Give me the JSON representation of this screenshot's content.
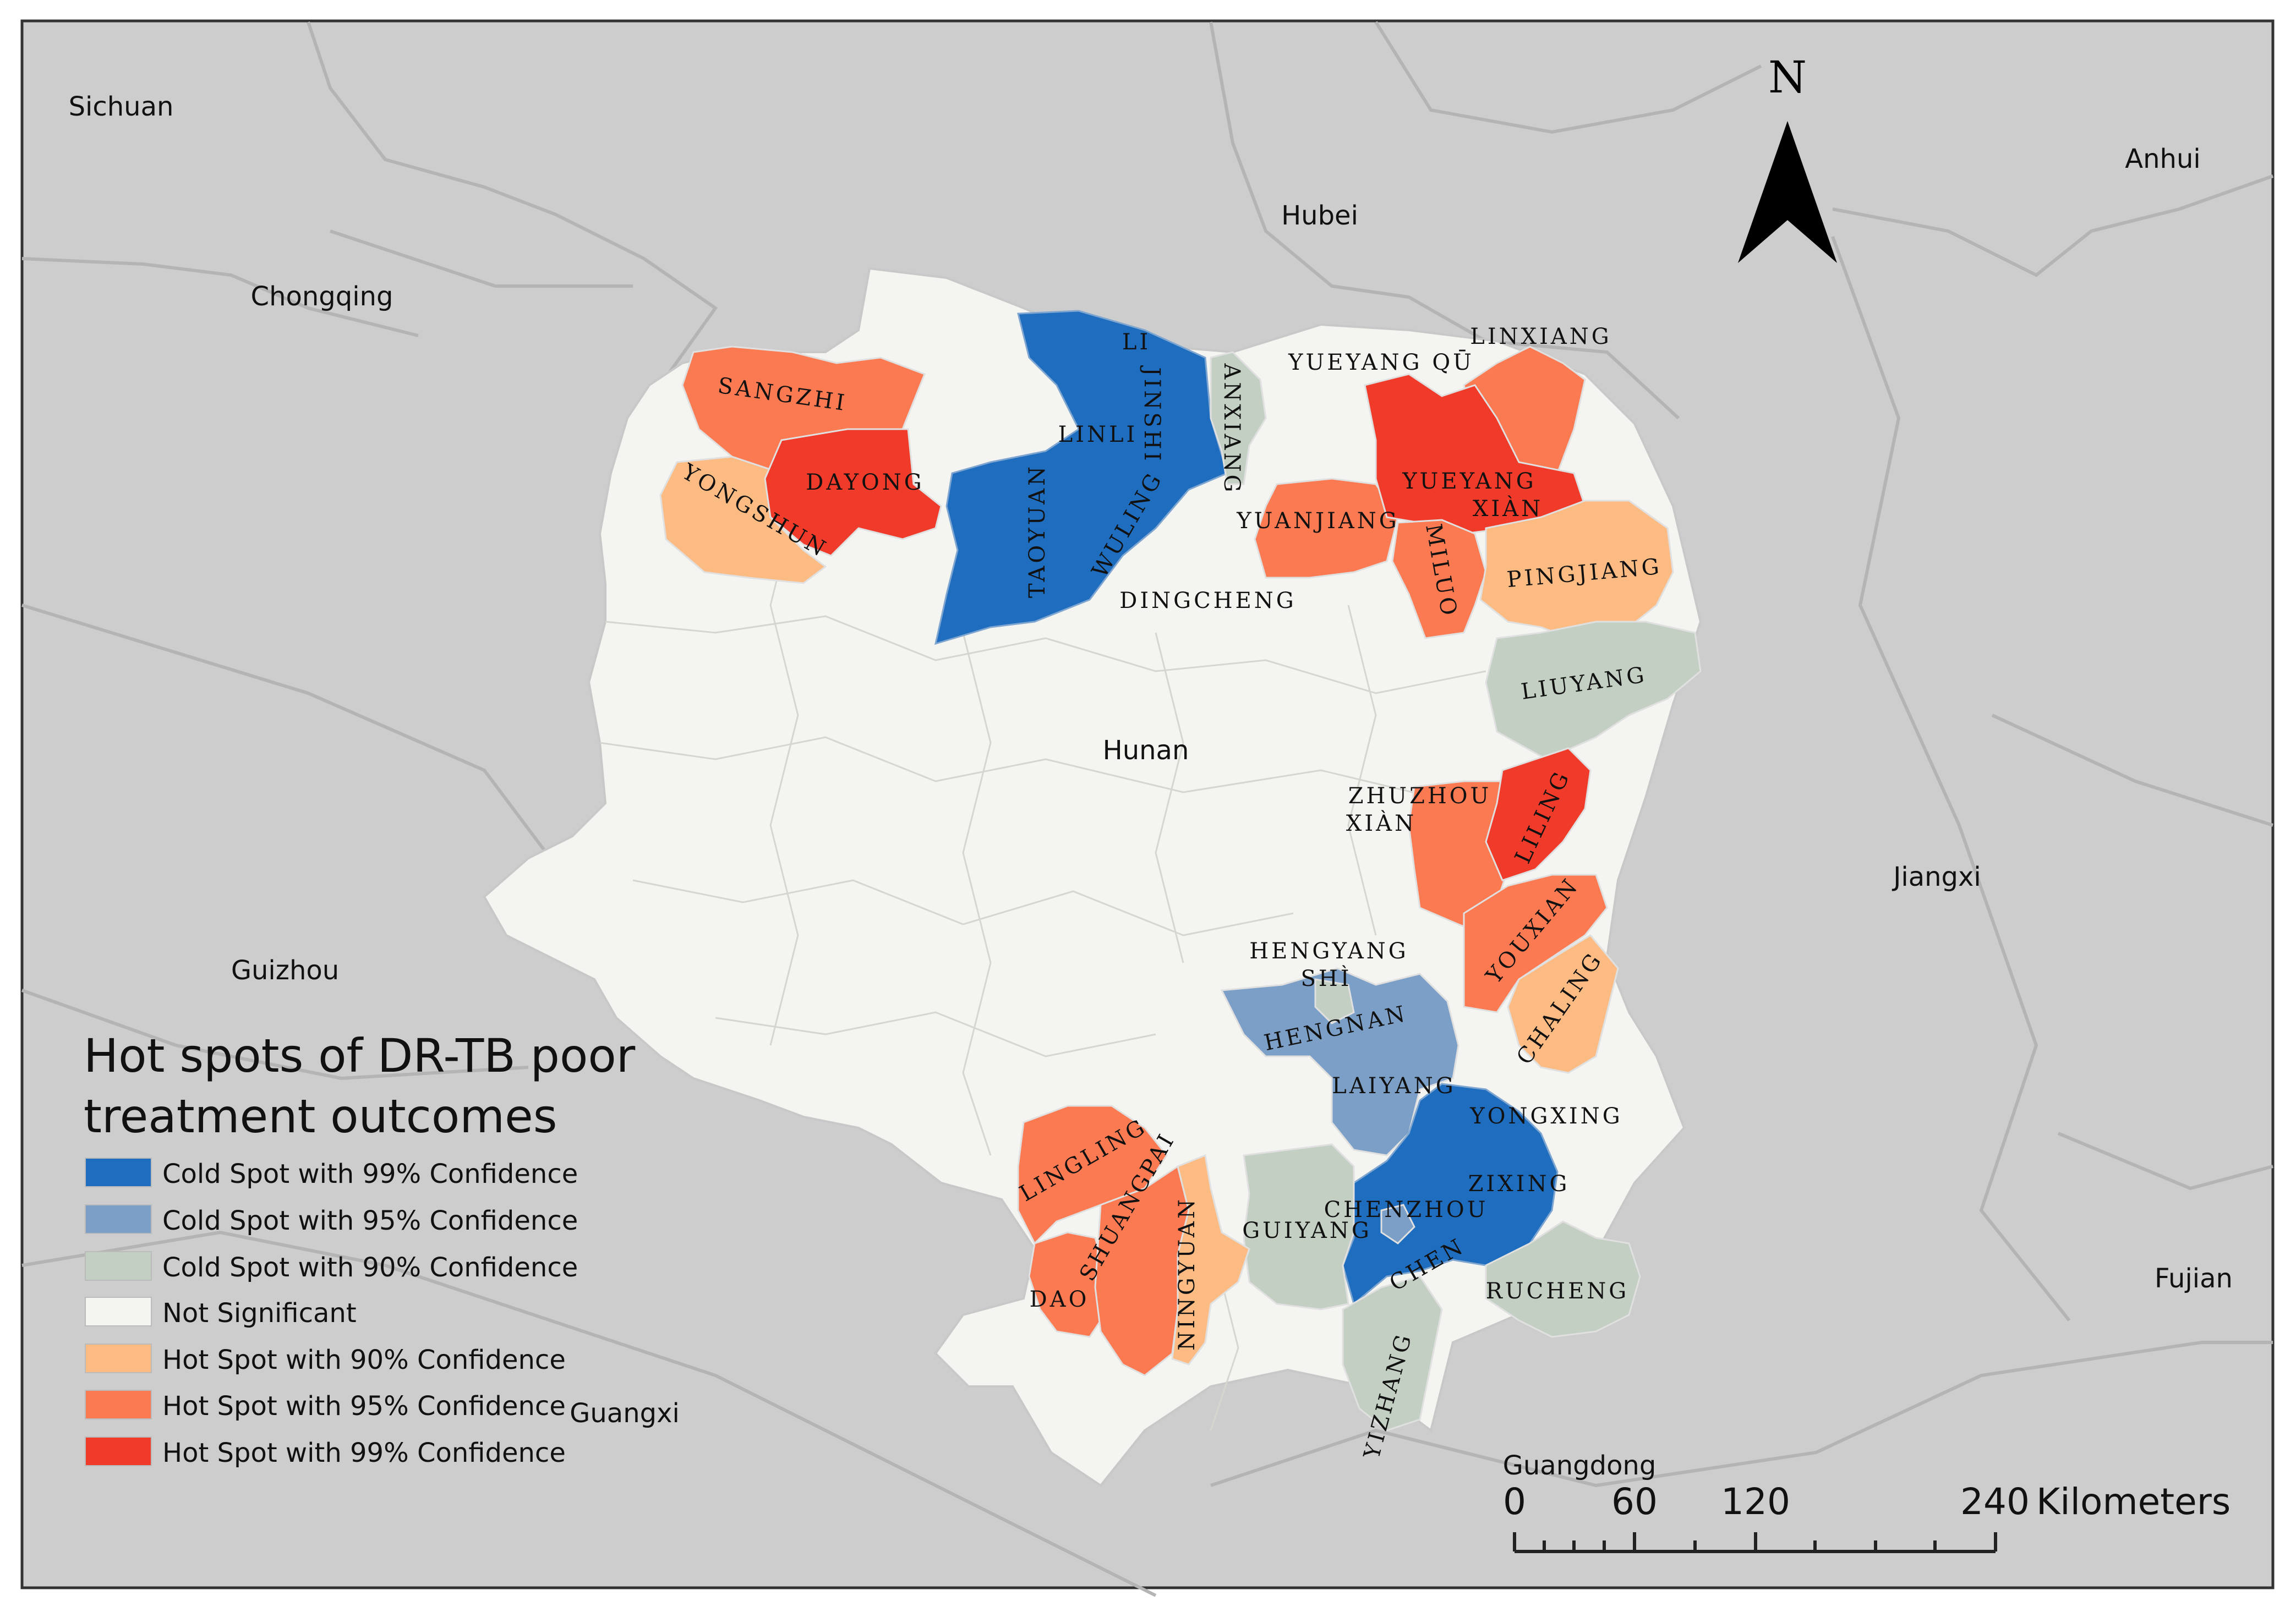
{
  "colors": {
    "background": "#cdcdcd",
    "cold99": "#1f6dbf",
    "cold95": "#7b9fc6",
    "cold90": "#c3cfc3",
    "not_significant": "#f4f4f1",
    "hot90": "#fdbb84",
    "hot95": "#fb7a52",
    "hot99": "#f03a2a"
  },
  "provinces": {
    "sichuan": "Sichuan",
    "chongqing": "Chongqing",
    "hubei": "Hubei",
    "anhui": "Anhui",
    "guizhou": "Guizhou",
    "hunan": "Hunan",
    "jiangxi": "Jiangxi",
    "guangxi": "Guangxi",
    "guangdong": "Guangdong",
    "fujian": "Fujian"
  },
  "counties": {
    "sangzhi": "SANGZHI",
    "dayong": "DAYONG",
    "yongshun": "YONGSHUN",
    "li": "LI",
    "linli": "LINLI",
    "jinshi": "JINSHI",
    "anxiang": "ANXIANG",
    "taoyuan": "TAOYUAN",
    "wuling": "WULING",
    "dingcheng": "DINGCHENG",
    "yuanjiang": "YUANJIANG",
    "yueyang_qu": "YUEYANG QŪ",
    "linxiang": "LINXIANG",
    "yueyang_xian_1": "YUEYANG",
    "yueyang_xian_2": "XIÀN",
    "miluo": "MILUO",
    "pingjiang": "PINGJIANG",
    "liuyang": "LIUYANG",
    "zhuzhou_1": "ZHUZHOU",
    "zhuzhou_2": "XIÀN",
    "liling": "LILING",
    "youxian": "YOUXIAN",
    "chaling": "CHALING",
    "hengyang_1": "HENGYANG",
    "hengyang_2": "SHÌ",
    "hengnan": "HENGNAN",
    "laiyang": "LAIYANG",
    "yongxing": "YONGXING",
    "zixing": "ZIXING",
    "chenzhou": "CHENZHOU",
    "chen": "CHEN",
    "guiyang": "GUIYANG",
    "rucheng": "RUCHENG",
    "yizhang": "YIZHANG",
    "lingling": "LINGLING",
    "shuangpai": "SHUANGPAI",
    "ningyuan": "NINGYUAN",
    "dao": "DAO"
  },
  "north_arrow": {
    "label": "N"
  },
  "legend": {
    "title_line1": "Hot spots of DR-TB poor",
    "title_line2": "treatment outcomes",
    "items": [
      {
        "label": "Cold Spot with 99% Confidence",
        "color": "#1f6dbf"
      },
      {
        "label": "Cold Spot with 95% Confidence",
        "color": "#7b9fc6"
      },
      {
        "label": "Cold Spot with 90% Confidence",
        "color": "#c3cfc3"
      },
      {
        "label": "Not Significant",
        "color": "#f4f4f1"
      },
      {
        "label": "Hot Spot with 90% Confidence",
        "color": "#fdbb84"
      },
      {
        "label": "Hot Spot with 95% Confidence",
        "color": "#fb7a52"
      },
      {
        "label": "Hot Spot with 99% Confidence",
        "color": "#f03a2a"
      }
    ]
  },
  "scale_bar": {
    "tick0": "0",
    "tick1": "60",
    "tick2": "120",
    "tick3": "240",
    "unit": "Kilometers"
  }
}
